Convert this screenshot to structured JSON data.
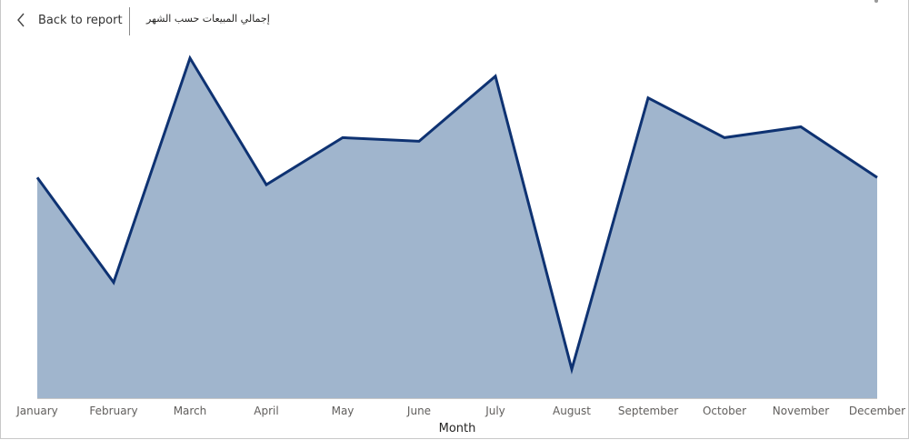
{
  "header": {
    "back_label": "Back to report",
    "title": "إجمالي المبيعات حسب الشهر"
  },
  "chart_data": {
    "type": "area",
    "title": "إجمالي المبيعات حسب الشهر",
    "xlabel": "Month",
    "ylabel": "",
    "categories": [
      "January",
      "February",
      "March",
      "April",
      "May",
      "June",
      "July",
      "August",
      "September",
      "October",
      "November",
      "December"
    ],
    "values": [
      0.61,
      0.32,
      0.94,
      0.59,
      0.72,
      0.71,
      0.89,
      0.08,
      0.83,
      0.72,
      0.75,
      0.61
    ],
    "ylim": [
      0,
      1
    ],
    "grid": false,
    "legend": "none",
    "y_axis_labels_shown": false,
    "colors": {
      "line": "#0e3272",
      "fill": "#a0b5cd"
    }
  }
}
